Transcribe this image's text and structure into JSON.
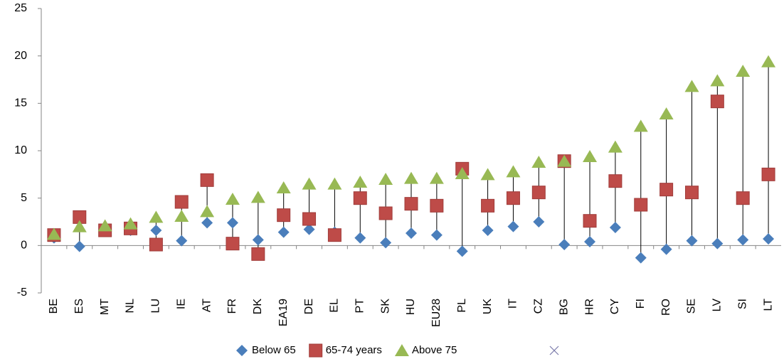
{
  "chart_data": {
    "type": "dot",
    "categories": [
      "BE",
      "ES",
      "MT",
      "NL",
      "LU",
      "IE",
      "AT",
      "FR",
      "DK",
      "EA19",
      "DE",
      "EL",
      "PT",
      "SK",
      "HU",
      "EU28",
      "PL",
      "UK",
      "IT",
      "CZ",
      "BG",
      "HR",
      "CY",
      "FI",
      "RO",
      "SE",
      "LV",
      "SI",
      "LT"
    ],
    "series": [
      {
        "name": "Below 65",
        "color": "#4a7ebb",
        "marker": "diamond",
        "values": [
          0.8,
          -0.1,
          1.8,
          1.6,
          1.6,
          0.5,
          2.4,
          2.4,
          0.6,
          1.4,
          1.7,
          1.4,
          0.8,
          0.3,
          1.3,
          1.1,
          -0.6,
          1.6,
          2.0,
          2.5,
          0.1,
          0.4,
          1.9,
          -1.3,
          -0.4,
          0.5,
          0.2,
          0.6,
          0.7
        ]
      },
      {
        "name": "65-74 years",
        "color": "#be4b48",
        "marker": "square",
        "values": [
          1.1,
          3.0,
          1.6,
          1.8,
          0.1,
          4.6,
          6.9,
          0.2,
          -0.9,
          3.2,
          2.8,
          1.1,
          5.0,
          3.4,
          4.4,
          4.2,
          8.1,
          4.2,
          5.0,
          5.6,
          8.9,
          2.6,
          6.8,
          4.3,
          5.9,
          5.6,
          15.2,
          5.0,
          7.5
        ]
      },
      {
        "name": "Above 75",
        "color": "#98b954",
        "marker": "triangle",
        "values": [
          1.2,
          2.0,
          2.1,
          2.3,
          3.0,
          3.1,
          3.6,
          4.9,
          5.1,
          6.1,
          6.5,
          6.5,
          6.7,
          7.0,
          7.1,
          7.1,
          7.6,
          7.5,
          7.8,
          8.8,
          8.9,
          9.4,
          10.4,
          12.6,
          13.9,
          16.8,
          17.4,
          18.4,
          19.4
        ]
      }
    ],
    "ylim": [
      -5,
      25
    ],
    "yticks": [
      -5,
      0,
      5,
      10,
      15,
      20,
      25
    ],
    "hi_lo_lines": true,
    "grid": false,
    "legend": "bottom"
  }
}
